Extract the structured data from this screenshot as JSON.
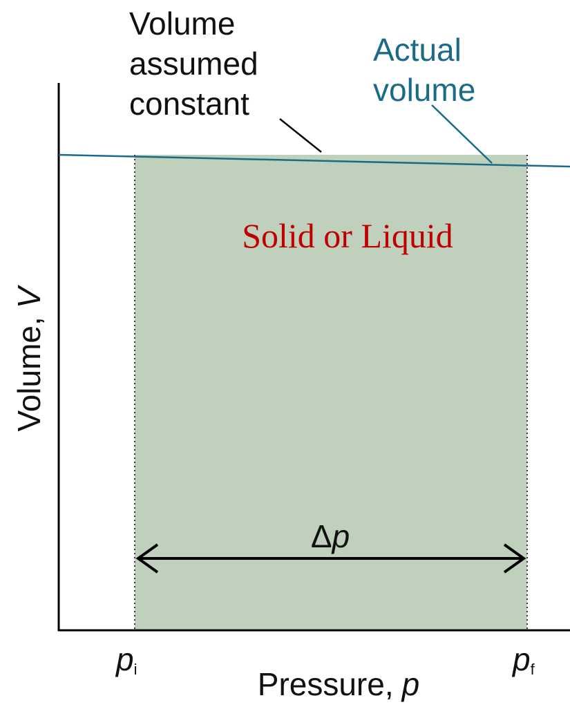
{
  "annotations": {
    "assumed": {
      "lines": [
        "Volume",
        "assumed",
        "constant"
      ]
    },
    "actual": {
      "lines": [
        "Actual",
        "volume"
      ]
    },
    "region": "Solid or Liquid",
    "delta": {
      "symbol": "Δ",
      "variable": "p"
    }
  },
  "axes": {
    "y": {
      "label": "Volume,",
      "variable": "V"
    },
    "x": {
      "label": "Pressure,",
      "variable": "p"
    },
    "x_marks": [
      {
        "symbol": "p",
        "subscript": "i"
      },
      {
        "symbol": "p",
        "subscript": "f"
      }
    ]
  }
}
